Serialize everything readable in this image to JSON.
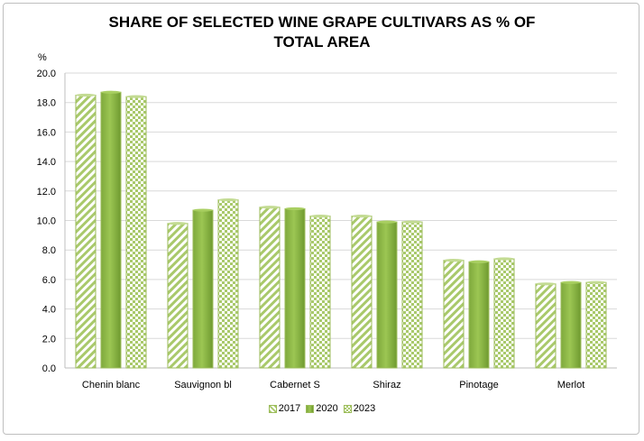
{
  "chart_data": {
    "type": "bar",
    "title_line1": "SHARE OF SELECTED  WINE GRAPE CULTIVARS AS % OF",
    "title_line2": "TOTAL AREA",
    "ylabel": "%",
    "xlabel": "",
    "ylim": [
      0,
      20
    ],
    "yticks": [
      "0.0",
      "2.0",
      "4.0",
      "6.0",
      "8.0",
      "10.0",
      "12.0",
      "14.0",
      "16.0",
      "18.0",
      "20.0"
    ],
    "grid": true,
    "legend_position": "bottom",
    "categories": [
      "Chenin blanc",
      "Sauvignon bl",
      "Cabernet S",
      "Shiraz",
      "Pinotage",
      "Merlot"
    ],
    "series": [
      {
        "name": "2017",
        "pattern": "diagonal-stripes",
        "color": "#9bbb59",
        "values": [
          18.5,
          9.8,
          10.9,
          10.3,
          7.3,
          5.7
        ]
      },
      {
        "name": "2020",
        "pattern": "solid",
        "color": "#8cb845",
        "values": [
          18.7,
          10.7,
          10.8,
          9.9,
          7.2,
          5.8
        ]
      },
      {
        "name": "2023",
        "pattern": "checkerboard",
        "color": "#9bbb59",
        "values": [
          18.4,
          11.4,
          10.3,
          9.9,
          7.4,
          5.8
        ]
      }
    ]
  }
}
